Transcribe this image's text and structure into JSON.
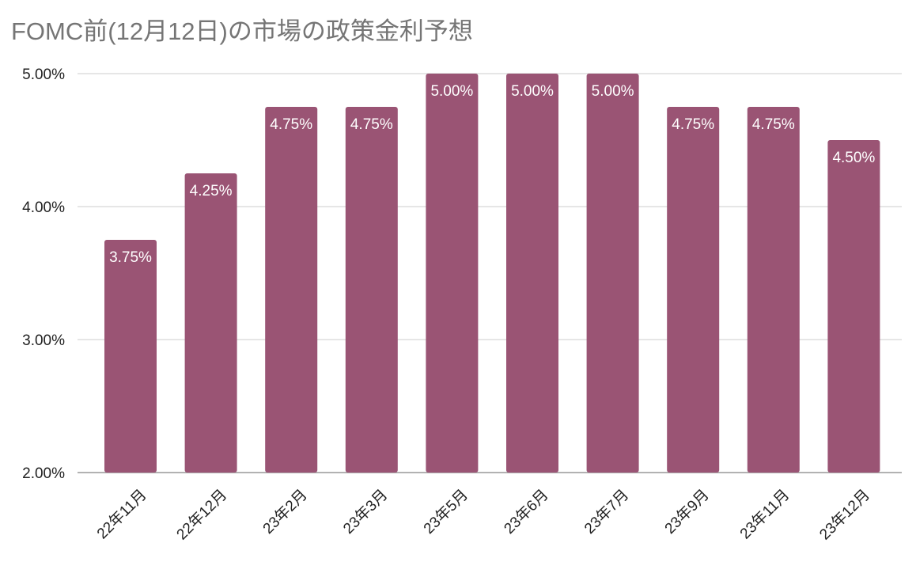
{
  "chart_data": {
    "type": "bar",
    "title": "FOMC前(12月12日)の市場の政策金利予想",
    "xlabel": "",
    "ylabel": "",
    "categories": [
      "22年11月",
      "22年12月",
      "23年2月",
      "23年3月",
      "23年5月",
      "23年6月",
      "23年7月",
      "23年9月",
      "23年11月",
      "23年12月"
    ],
    "values": [
      3.75,
      4.25,
      4.75,
      4.75,
      5.0,
      5.0,
      5.0,
      4.75,
      4.75,
      4.5
    ],
    "data_labels": [
      "3.75%",
      "4.25%",
      "4.75%",
      "4.75%",
      "5.00%",
      "5.00%",
      "5.00%",
      "4.75%",
      "4.75%",
      "4.50%"
    ],
    "ylim": [
      2.0,
      5.0
    ],
    "yticks": [
      2.0,
      3.0,
      4.0,
      5.0
    ],
    "ytick_labels": [
      "2.00%",
      "3.00%",
      "4.00%",
      "5.00%"
    ],
    "grid": true,
    "legend": "none",
    "bar_color": "#9a5474",
    "grid_color": "#cccccc",
    "title_color": "#757575"
  }
}
